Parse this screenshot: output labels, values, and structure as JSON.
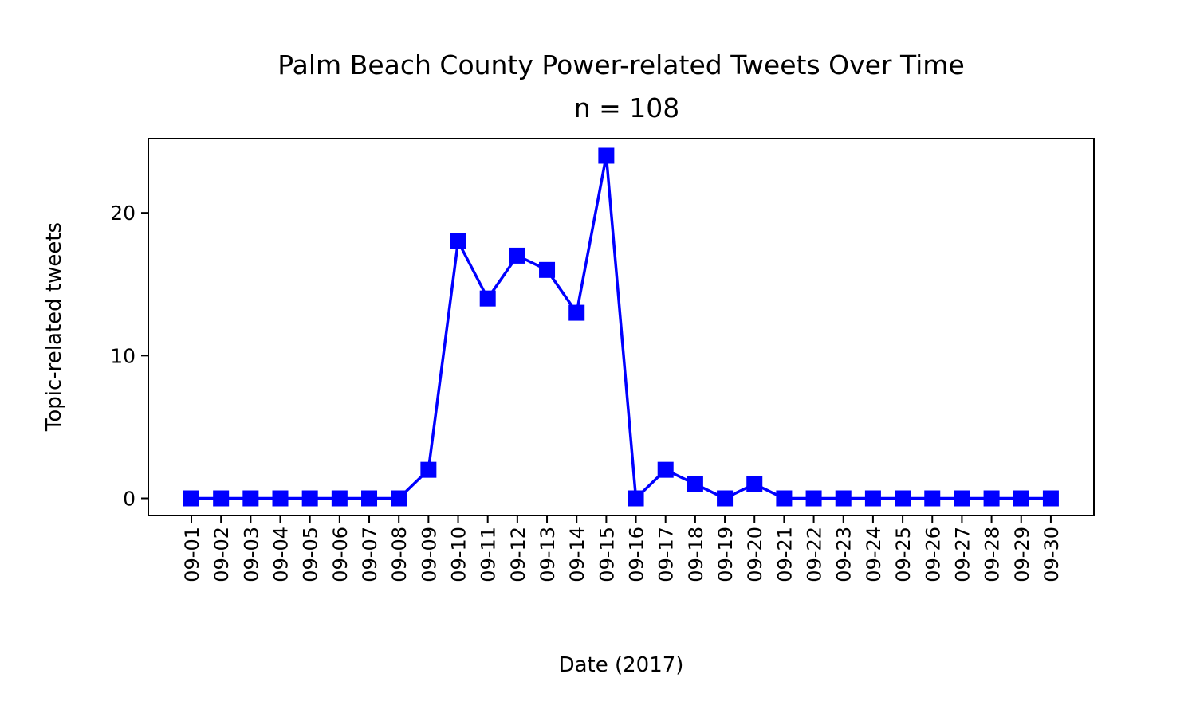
{
  "chart_data": {
    "type": "line",
    "title": "Palm Beach County Power-related Tweets Over Time",
    "subtitle": "n = 108",
    "xlabel": "Date (2017)",
    "ylabel": "Topic-related tweets",
    "categories": [
      "09-01",
      "09-02",
      "09-03",
      "09-04",
      "09-05",
      "09-06",
      "09-07",
      "09-08",
      "09-09",
      "09-10",
      "09-11",
      "09-12",
      "09-13",
      "09-14",
      "09-15",
      "09-16",
      "09-17",
      "09-18",
      "09-19",
      "09-20",
      "09-21",
      "09-22",
      "09-23",
      "09-24",
      "09-25",
      "09-26",
      "09-27",
      "09-28",
      "09-29",
      "09-30"
    ],
    "series": [
      {
        "values": [
          0,
          0,
          0,
          0,
          0,
          0,
          0,
          0,
          2,
          18,
          14,
          17,
          16,
          13,
          24,
          0,
          2,
          1,
          0,
          1,
          0,
          0,
          0,
          0,
          0,
          0,
          0,
          0,
          0,
          0
        ]
      }
    ],
    "ylim": [
      -1.2,
      25.2
    ],
    "yticks": [
      0,
      10,
      20
    ],
    "grid": false,
    "marker": "square",
    "line_color": "#0000ff"
  }
}
